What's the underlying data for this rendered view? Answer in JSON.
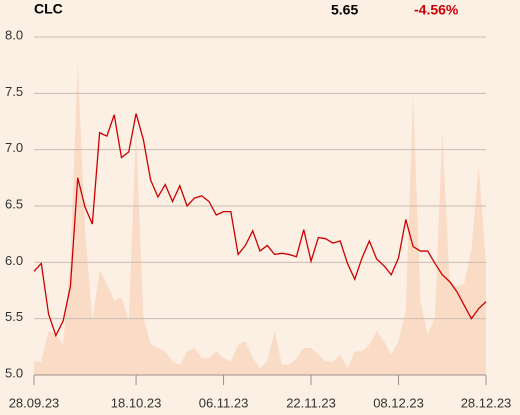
{
  "chart_data": {
    "type": "line",
    "title": "CLC",
    "price": "5.65",
    "change": "-4.56%",
    "categories": [
      "28.09.23",
      null,
      null,
      null,
      null,
      null,
      null,
      null,
      null,
      null,
      null,
      null,
      null,
      null,
      "18.10.23",
      null,
      null,
      null,
      null,
      null,
      null,
      null,
      null,
      null,
      null,
      null,
      "06.11.23",
      null,
      null,
      null,
      null,
      null,
      null,
      null,
      null,
      null,
      null,
      null,
      "22.11.23",
      null,
      null,
      null,
      null,
      null,
      null,
      null,
      null,
      null,
      null,
      null,
      "08.12.23",
      null,
      null,
      null,
      null,
      null,
      null,
      null,
      null,
      null,
      null,
      null,
      "28.12.23"
    ],
    "series": [
      {
        "color": "#cc0000",
        "values": [
          5.92,
          5.99,
          5.54,
          5.35,
          5.48,
          5.79,
          6.75,
          6.49,
          6.34,
          7.15,
          7.12,
          7.31,
          6.93,
          6.98,
          7.32,
          7.09,
          6.73,
          6.58,
          6.69,
          6.54,
          6.68,
          6.5,
          6.57,
          6.59,
          6.54,
          6.42,
          6.45,
          6.45,
          6.07,
          6.15,
          6.28,
          6.1,
          6.15,
          6.07,
          6.08,
          6.07,
          6.05,
          6.29,
          6.01,
          6.22,
          6.21,
          6.17,
          6.19,
          5.99,
          5.85,
          6.04,
          6.19,
          6.03,
          5.97,
          5.89,
          6.04,
          6.38,
          6.14,
          6.1,
          6.1,
          5.99,
          5.89,
          5.83,
          5.74,
          5.62,
          5.5,
          5.59,
          5.65
        ]
      },
      {
        "type": "area",
        "axis": "y2",
        "color": "#f9dbc6",
        "values": [
          4,
          4,
          13,
          12,
          9,
          34,
          92,
          43,
          16,
          31,
          27,
          22,
          23,
          16,
          72,
          17,
          9,
          8,
          7,
          4,
          3,
          7,
          8,
          5,
          5,
          7,
          5,
          4,
          9,
          10,
          5,
          2,
          4,
          13,
          3,
          3,
          5,
          8,
          8,
          6,
          4,
          4,
          6,
          2,
          7,
          7,
          9,
          13,
          10,
          6,
          10,
          19,
          83,
          22,
          12,
          17,
          72,
          28,
          26,
          27,
          37,
          62,
          33
        ]
      }
    ],
    "ylim": [
      5,
      8
    ],
    "yticks": [
      {
        "value": 5,
        "label": "5.0"
      },
      5.5,
      {
        "value": 6,
        "label": "6.0"
      },
      6.5,
      {
        "value": 7,
        "label": "7.0"
      },
      7.5,
      {
        "value": 8,
        "label": "8.0"
      }
    ],
    "y2lim": [
      0,
      100
    ],
    "grid": true
  }
}
